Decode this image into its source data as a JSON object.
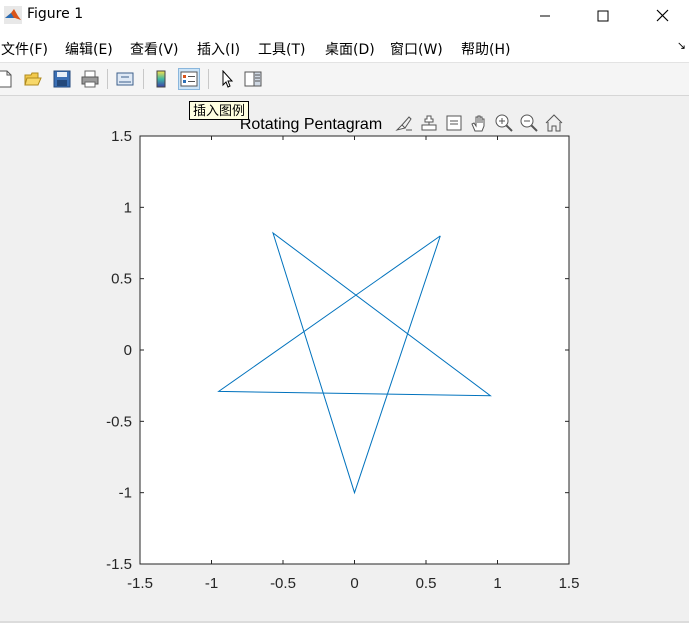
{
  "window": {
    "title": "Figure 1",
    "minimize": "—",
    "maximize": "☐",
    "close": "✕"
  },
  "menu": {
    "items": [
      "文件(F)",
      "编辑(E)",
      "查看(V)",
      "插入(I)",
      "工具(T)",
      "桌面(D)",
      "窗口(W)",
      "帮助(H)"
    ],
    "overflow_arrow": "↘"
  },
  "toolbar": {
    "buttons": [
      "new-figure-icon",
      "open-file-icon",
      "save-icon",
      "print-icon",
      "link-plot-icon",
      "insert-colorbar-icon",
      "insert-legend-icon",
      "edit-plot-icon",
      "property-inspector-icon"
    ],
    "tooltip": "插入图例"
  },
  "axes_toolbar": {
    "icons": [
      "brush-icon",
      "data-tips-icon",
      "restore-view-icon",
      "pan-icon",
      "zoom-in-icon",
      "zoom-out-icon",
      "home-icon"
    ]
  },
  "colors": {
    "line": "#0072BD",
    "axes_bg": "#ffffff",
    "figure_bg": "#f0f0f0"
  },
  "chart_data": {
    "type": "line",
    "title": "Rotating Pentagram",
    "xlabel": "",
    "ylabel": "",
    "xlim": [
      -1.5,
      1.5
    ],
    "ylim": [
      -1.5,
      1.5
    ],
    "xticks": [
      "-1.5",
      "-1",
      "-0.5",
      "0",
      "0.5",
      "1",
      "1.5"
    ],
    "yticks": [
      "1.5",
      "1",
      "0.5",
      "0",
      "-0.5",
      "-1",
      "-1.5"
    ],
    "grid": false,
    "series": [
      {
        "x": [
          0.6,
          -0.95,
          0.95,
          -0.57,
          0.0,
          0.6
        ],
        "y": [
          0.8,
          -0.29,
          -0.32,
          0.82,
          -1.0,
          0.8
        ]
      }
    ]
  }
}
